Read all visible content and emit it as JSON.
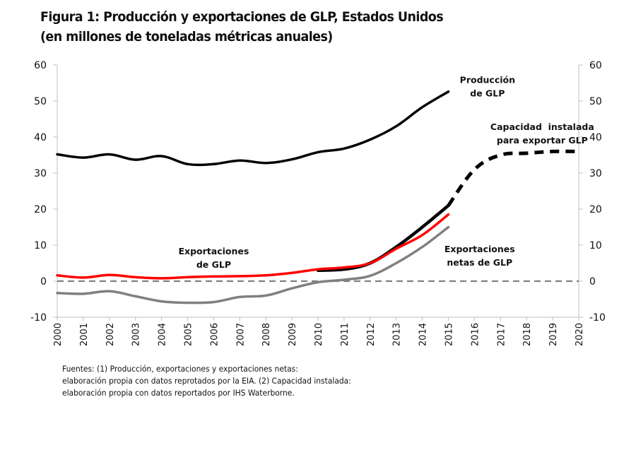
{
  "title": {
    "line1": "Figura 1: Producción y exportaciones de GLP, Estados Unidos",
    "line2": "(en millones de toneladas  métricas anuales)"
  },
  "source": {
    "line1": "Fuentes: (1) Producción, exportaciones y exportaciones netas:",
    "line2": "elaboración propia con datos reprotados por la EIA. (2) Capacidad instalada:",
    "line3": "elaboración propia con datos reportados por IHS Waterborne."
  },
  "chart_data": {
    "type": "line",
    "title": "Figura 1: Producción y exportaciones de GLP, Estados Unidos (en millones de toneladas métricas anuales)",
    "xlabel": "",
    "ylabel": "",
    "x": [
      2000,
      2001,
      2002,
      2003,
      2004,
      2005,
      2006,
      2007,
      2008,
      2009,
      2010,
      2011,
      2012,
      2013,
      2014,
      2015,
      2016,
      2017,
      2018,
      2019,
      2020
    ],
    "xlim": [
      2000,
      2020
    ],
    "ylim": [
      -10,
      60
    ],
    "yticks": [
      -10,
      0,
      10,
      20,
      30,
      40,
      50,
      60
    ],
    "yticks_right": [
      -10,
      0,
      10,
      20,
      30,
      40,
      50,
      60
    ],
    "grid": false,
    "legend": "none (inline annotations)",
    "reference_line": {
      "y": 0,
      "style": "dashed",
      "color": "#808080"
    },
    "series": [
      {
        "name": "Producción de GLP",
        "color": "#000000",
        "style": "solid",
        "x": [
          2000,
          2001,
          2002,
          2003,
          2004,
          2005,
          2006,
          2007,
          2008,
          2009,
          2010,
          2011,
          2012,
          2013,
          2014,
          2015
        ],
        "values": [
          35.2,
          34.3,
          35.2,
          33.7,
          34.7,
          32.5,
          32.5,
          33.5,
          32.8,
          33.8,
          35.8,
          36.8,
          39.3,
          43.0,
          48.3,
          52.6
        ]
      },
      {
        "name": "Capacidad instalada para exportar GLP",
        "color": "#000000",
        "style": "solid 2010-2015, dashed 2015-2020",
        "x": [
          2010,
          2011,
          2012,
          2013,
          2014,
          2015,
          2016,
          2017,
          2018,
          2019,
          2020
        ],
        "values": [
          3.0,
          3.3,
          5.0,
          9.5,
          15.0,
          21.0,
          31.0,
          35.0,
          35.5,
          36.0,
          36.0
        ]
      },
      {
        "name": "Exportaciones de GLP",
        "color": "#ff0000",
        "style": "solid",
        "x": [
          2000,
          2001,
          2002,
          2003,
          2004,
          2005,
          2006,
          2007,
          2008,
          2009,
          2010,
          2011,
          2012,
          2013,
          2014,
          2015
        ],
        "values": [
          1.6,
          1.0,
          1.7,
          1.1,
          0.8,
          1.1,
          1.3,
          1.4,
          1.6,
          2.3,
          3.3,
          3.8,
          5.0,
          9.0,
          12.8,
          18.5
        ]
      },
      {
        "name": "Exportaciones netas de GLP",
        "color": "#808080",
        "style": "solid",
        "x": [
          2000,
          2001,
          2002,
          2003,
          2004,
          2005,
          2006,
          2007,
          2008,
          2009,
          2010,
          2011,
          2012,
          2013,
          2014,
          2015
        ],
        "values": [
          -3.3,
          -3.5,
          -2.8,
          -4.2,
          -5.6,
          -6.0,
          -5.8,
          -4.4,
          -4.0,
          -2.0,
          -0.3,
          0.4,
          1.5,
          5.0,
          9.5,
          15.0
        ]
      }
    ],
    "annotations": [
      {
        "series": "Producción de GLP",
        "lines": [
          "Producción",
          "de GLP"
        ],
        "anchor": {
          "x": 2016.5,
          "y": 55
        }
      },
      {
        "series": "Capacidad instalada para exportar GLP",
        "lines": [
          "Capacidad  instalada",
          "para exportar GLP"
        ],
        "anchor": {
          "x": 2018.6,
          "y": 42
        }
      },
      {
        "series": "Exportaciones de GLP",
        "lines": [
          "Exportaciones",
          "de GLP"
        ],
        "anchor": {
          "x": 2006.0,
          "y": 7.5
        }
      },
      {
        "series": "Exportaciones netas de GLP",
        "lines": [
          "Exportaciones",
          "netas de GLP"
        ],
        "anchor": {
          "x": 2016.2,
          "y": 8.0
        }
      }
    ]
  }
}
